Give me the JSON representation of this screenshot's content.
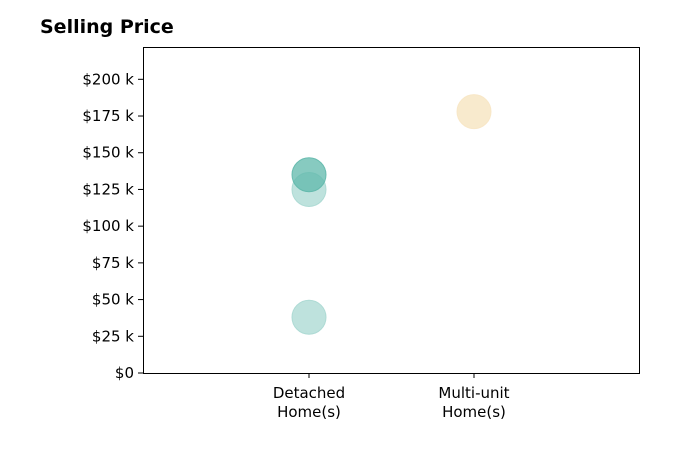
{
  "chart_data": {
    "type": "scatter",
    "title": "Selling Price",
    "xlabel": "",
    "ylabel": "",
    "categories": [
      "Detached\nHome(s)",
      "Multi-unit\nHome(s)"
    ],
    "ylim": [
      0,
      222000
    ],
    "yticks": [
      0,
      25000,
      50000,
      75000,
      100000,
      125000,
      150000,
      175000,
      200000
    ],
    "ytick_labels": [
      "$0",
      "$25 k",
      "$50 k",
      "$75 k",
      "$100 k",
      "$125 k",
      "$150 k",
      "$175 k",
      "$200 k"
    ],
    "grid": false,
    "points": [
      {
        "category": "Detached\nHome(s)",
        "y": 38000,
        "color": "#a8d8d1",
        "opacity": 0.75
      },
      {
        "category": "Detached\nHome(s)",
        "y": 125000,
        "color": "#a8d8d1",
        "opacity": 0.75
      },
      {
        "category": "Detached\nHome(s)",
        "y": 135000,
        "color": "#5fb8ab",
        "opacity": 0.75
      },
      {
        "category": "Multi-unit\nHome(s)",
        "y": 178000,
        "color": "#f7e6c4",
        "opacity": 0.85
      }
    ]
  }
}
